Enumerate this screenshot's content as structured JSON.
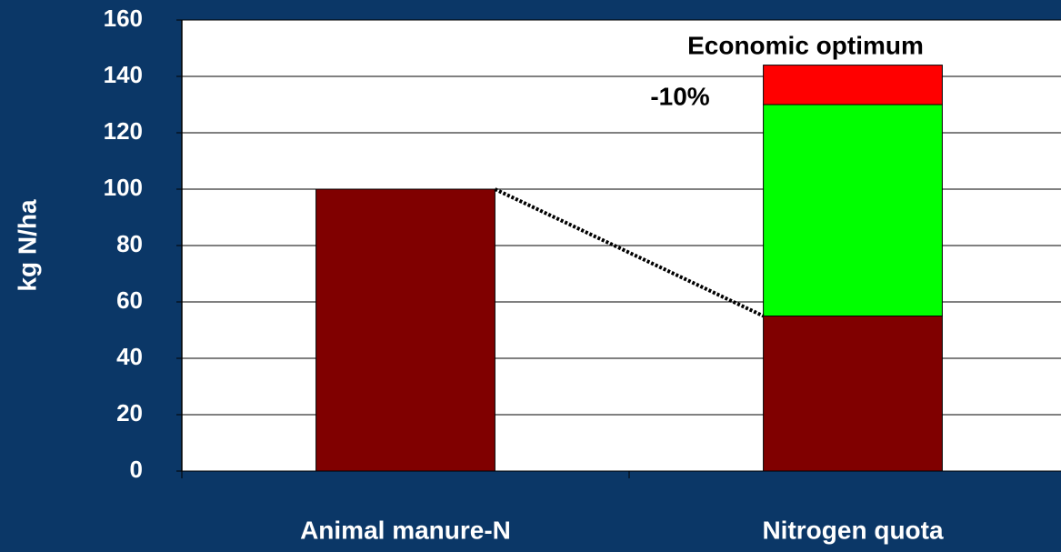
{
  "chart_data": {
    "type": "stacked_bar",
    "y_label": "kg N/ha",
    "categories": [
      "Animal manure-N",
      "Nitrogen quota"
    ],
    "series": [
      {
        "color": "#800000",
        "values": [
          100,
          55
        ]
      },
      {
        "color": "#00ff00",
        "values": [
          null,
          75
        ]
      },
      {
        "color": "#ff0000",
        "values": [
          null,
          14
        ]
      }
    ],
    "annotations": [
      "Economic optimum",
      "-10%"
    ],
    "ylim": [
      0,
      160
    ],
    "yticks": [
      0,
      20,
      40,
      60,
      80,
      100,
      120,
      140,
      160
    ],
    "grid": true
  }
}
